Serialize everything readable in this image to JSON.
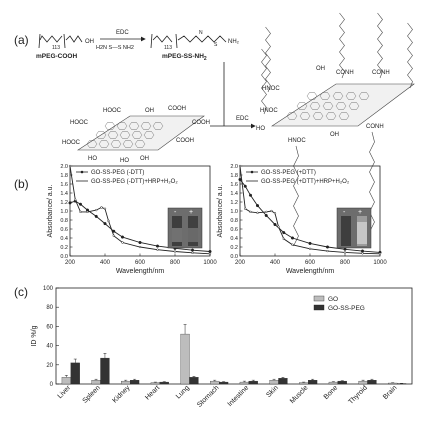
{
  "panel_a": {
    "label": "(a)",
    "reagent_left_label": "mPEG-COOH",
    "reagent_right_label": "mPEG-SS-NH",
    "reagent_right_sub": "2",
    "subscript_113_left": "113",
    "subscript_113_right": "113",
    "edc_top": "EDC",
    "linker_label": "H2N    S—S    NH2",
    "edc_right": "EDC",
    "go_groups": {
      "hooc1": "HOOC",
      "hooc2": "HOOC",
      "hooc3": "HOOC",
      "cooh1": "COOH",
      "cooh2": "COOH",
      "cooh3": "COOH",
      "ho1": "HO",
      "ho2": "HO",
      "oh1": "OH",
      "oh2": "OH"
    },
    "product_groups": {
      "hnoc1": "HNOC",
      "hnoc2": "HNOC",
      "hnoc3": "HNOC",
      "conh1": "CONH",
      "conh2": "CONH",
      "conh3": "CONH",
      "oh1": "OH",
      "oh2": "OH",
      "ho1": "HO"
    }
  },
  "panel_b": {
    "label": "(b)",
    "left_legend": [
      "GO-SS-PEG (-DTT)",
      "GO-SS-PEG (-DTT)+HRP+H₂O₂"
    ],
    "right_legend": [
      "GO-SS-PEG (+DTT)",
      "GO-SS-PEG (+DTT)+HRP+H₂O₂"
    ],
    "inset_minus": "-",
    "inset_plus": "+",
    "ylabel": "Absorbance/ a.u.",
    "xlabel": "Wavelength/nm"
  },
  "panel_c": {
    "label": "(c)",
    "legend": [
      "GO",
      "GO-SS-PEG"
    ]
  },
  "chart_data": [
    {
      "type": "line",
      "xlabel": "Wavelength/nm",
      "ylabel": "Absorbance/ a.u.",
      "xlim": [
        200,
        1000
      ],
      "ylim": [
        0.0,
        2.0
      ],
      "xticks": [
        "200",
        "400",
        "600",
        "800",
        "1000"
      ],
      "yticks": [
        "0.0",
        "0.2",
        "0.4",
        "0.6",
        "0.8",
        "1.0",
        "1.2",
        "1.4",
        "1.6",
        "1.8",
        "2.0"
      ],
      "series": [
        {
          "name": "GO-SS-PEG (-DTT)",
          "x": [
            200,
            230,
            260,
            300,
            350,
            400,
            450,
            500,
            600,
            700,
            800,
            900,
            1000
          ],
          "y": [
            1.18,
            1.22,
            1.15,
            1.02,
            0.88,
            0.72,
            0.55,
            0.42,
            0.3,
            0.22,
            0.17,
            0.13,
            0.1
          ]
        },
        {
          "name": "GO-SS-PEG (-DTT)+HRP+H₂O₂",
          "x": [
            200,
            230,
            260,
            300,
            350,
            380,
            400,
            420,
            450,
            500,
            600,
            700,
            800,
            900,
            1000
          ],
          "y": [
            2.0,
            1.25,
            0.98,
            0.98,
            1.02,
            1.08,
            1.05,
            0.78,
            0.45,
            0.3,
            0.2,
            0.14,
            0.1,
            0.07,
            0.05
          ]
        }
      ]
    },
    {
      "type": "line",
      "xlabel": "Wavelength/nm",
      "ylabel": "Absorbance/ a.u.",
      "xlim": [
        200,
        1000
      ],
      "ylim": [
        0.0,
        2.0
      ],
      "xticks": [
        "200",
        "400",
        "600",
        "800",
        "1000"
      ],
      "yticks": [
        "0.0",
        "0.2",
        "0.4",
        "0.6",
        "0.8",
        "1.0",
        "1.2",
        "1.4",
        "1.6",
        "1.8",
        "2.0"
      ],
      "series": [
        {
          "name": "GO-SS-PEG (+DTT)",
          "x": [
            200,
            230,
            260,
            300,
            350,
            400,
            450,
            500,
            600,
            700,
            800,
            900,
            1000
          ],
          "y": [
            1.7,
            1.55,
            1.35,
            1.12,
            0.9,
            0.7,
            0.52,
            0.4,
            0.28,
            0.2,
            0.15,
            0.11,
            0.08
          ]
        },
        {
          "name": "GO-SS-PEG (+DTT)+HRP+H₂O₂",
          "x": [
            200,
            230,
            260,
            300,
            350,
            380,
            400,
            420,
            450,
            500,
            600,
            700,
            800,
            900,
            1000
          ],
          "y": [
            2.0,
            1.05,
            0.98,
            0.96,
            0.98,
            1.0,
            0.95,
            0.65,
            0.38,
            0.25,
            0.16,
            0.11,
            0.08,
            0.06,
            0.05
          ]
        }
      ]
    },
    {
      "type": "bar",
      "ylabel": "ID %/g",
      "ylim": [
        0,
        100
      ],
      "yticks": [
        "0",
        "20",
        "40",
        "60",
        "80",
        "100"
      ],
      "categories": [
        "Liver",
        "Spleen",
        "Kidney",
        "Heart",
        "Lung",
        "Stomach",
        "Intestine",
        "Skin",
        "Muscle",
        "Bone",
        "Thyroid",
        "Brain"
      ],
      "series": [
        {
          "name": "GO",
          "values": [
            7,
            4,
            3,
            1.5,
            52,
            3,
            2,
            4,
            1.5,
            2,
            3,
            1
          ],
          "errors": [
            2,
            1,
            1,
            0.5,
            10,
            1,
            1,
            1,
            0.5,
            0.5,
            1,
            0.3
          ]
        },
        {
          "name": "GO-SS-PEG",
          "values": [
            22,
            27,
            4,
            2,
            7,
            2,
            3,
            6,
            4,
            3,
            4,
            0.5
          ],
          "errors": [
            4,
            5,
            1,
            0.5,
            1,
            0.5,
            1,
            1,
            1,
            0.5,
            1,
            0.2
          ]
        }
      ]
    }
  ]
}
